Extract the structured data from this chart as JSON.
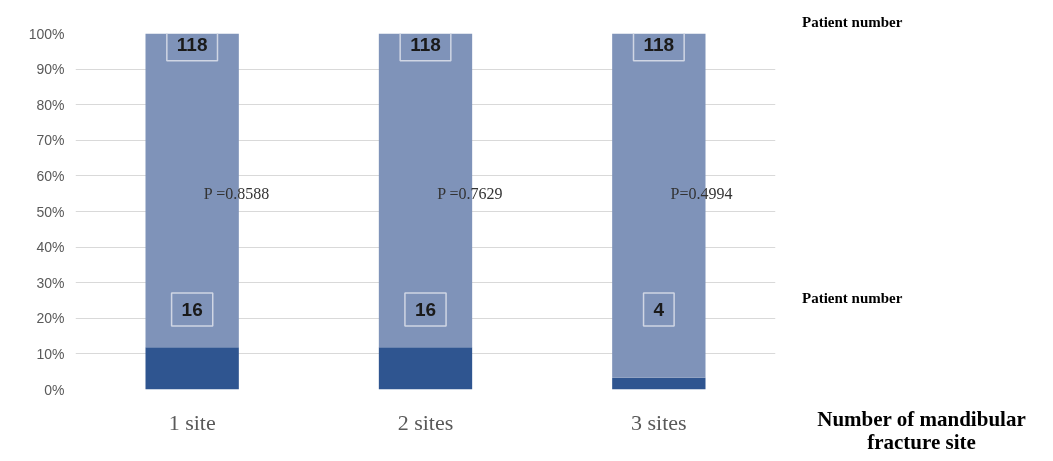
{
  "chart_data": {
    "type": "bar",
    "stacked": true,
    "xlabel": "Number of mandibular fracture site",
    "categories": [
      "1 site",
      "2 sites",
      "3 sites"
    ],
    "series": [
      {
        "color": "#2f5590",
        "values": [
          11.9,
          11.9,
          3.3
        ]
      },
      {
        "color": "#7f93b9",
        "values": [
          88.1,
          88.1,
          96.7
        ]
      }
    ],
    "ylim": [
      0,
      100
    ],
    "yticks": [
      {
        "value": 0,
        "label": "0%"
      },
      {
        "value": 10,
        "label": "10%"
      },
      {
        "value": 20,
        "label": "20%"
      },
      {
        "value": 30,
        "label": "30%"
      },
      {
        "value": 40,
        "label": "40%"
      },
      {
        "value": 50,
        "label": "50%"
      },
      {
        "value": 60,
        "label": "60%"
      },
      {
        "value": 70,
        "label": "70%"
      },
      {
        "value": 80,
        "label": "80%"
      },
      {
        "value": 90,
        "label": "90%"
      },
      {
        "value": 100,
        "label": "100%"
      }
    ],
    "grid": "y",
    "annotations": [
      "118",
      "118",
      "118",
      "16",
      "16",
      "4",
      "P =0.8588",
      "P =0.7629",
      "P=0.4994",
      "Patient number",
      "Patient number"
    ]
  }
}
